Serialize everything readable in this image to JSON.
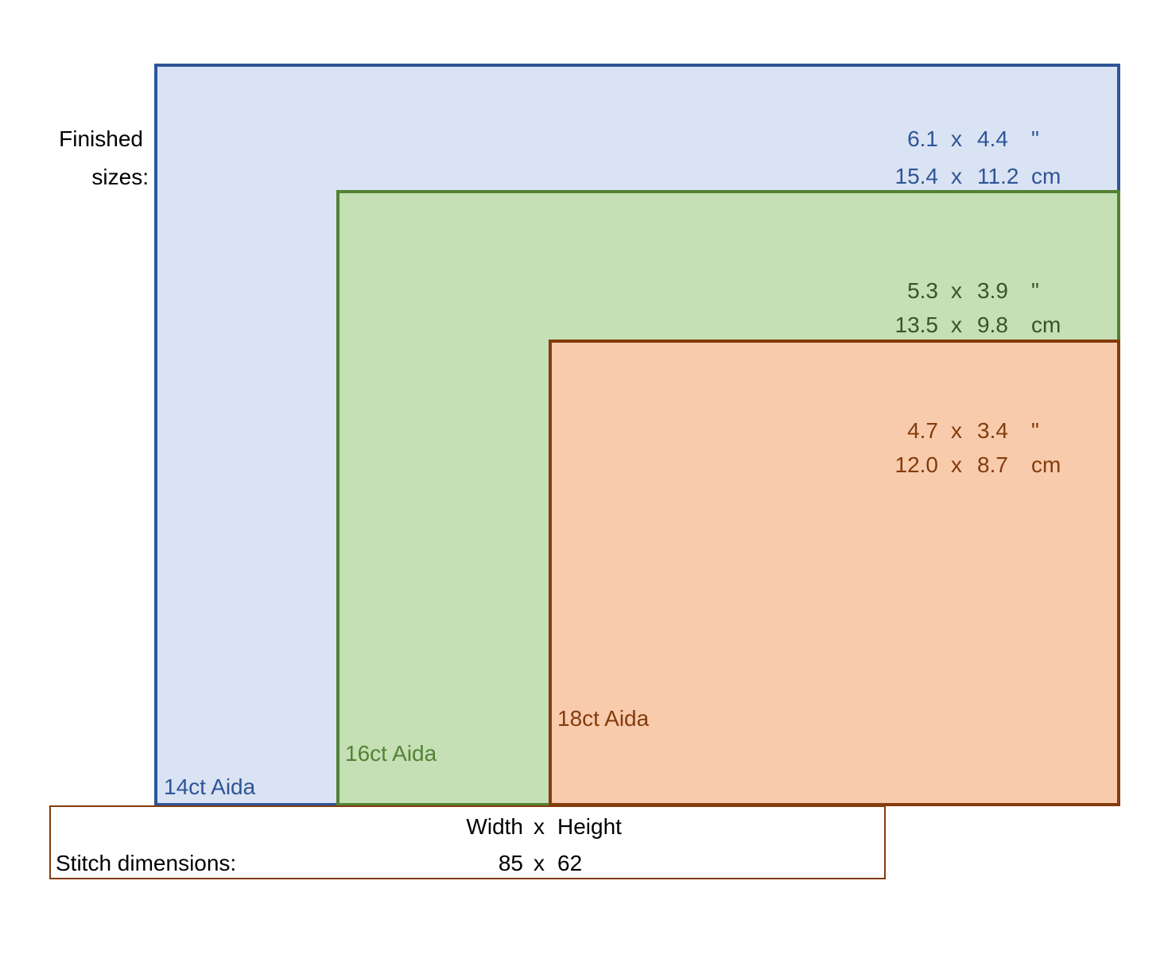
{
  "left_label": {
    "line1": "Finished",
    "line2": "sizes:"
  },
  "fabrics": [
    {
      "label": "14ct Aida",
      "color": "#2F5597",
      "fill": "#DAE3F3",
      "inch_w": "6.1",
      "inch_h": "4.4",
      "inch_unit": "\"",
      "cm_w": "15.4",
      "cm_h": "11.2",
      "cm_unit": "cm",
      "sep": "x"
    },
    {
      "label": "16ct Aida",
      "color": "#548235",
      "fill": "#C5E0B4",
      "inch_w": "5.3",
      "inch_h": "3.9",
      "inch_unit": "\"",
      "cm_w": "13.5",
      "cm_h": "9.8",
      "cm_unit": "cm",
      "sep": "x"
    },
    {
      "label": "18ct Aida",
      "color": "#843C0C",
      "fill": "#F8CBAD",
      "inch_w": "4.7",
      "inch_h": "3.4",
      "inch_unit": "\"",
      "cm_w": "12.0",
      "cm_h": "8.7",
      "cm_unit": "cm",
      "sep": "x"
    }
  ],
  "stitch_box": {
    "border_color": "#843C0C",
    "header_w": "Width",
    "header_sep": "x",
    "header_h": "Height",
    "label": "Stitch dimensions:",
    "value_w": "85",
    "value_sep": "x",
    "value_h": "62"
  }
}
